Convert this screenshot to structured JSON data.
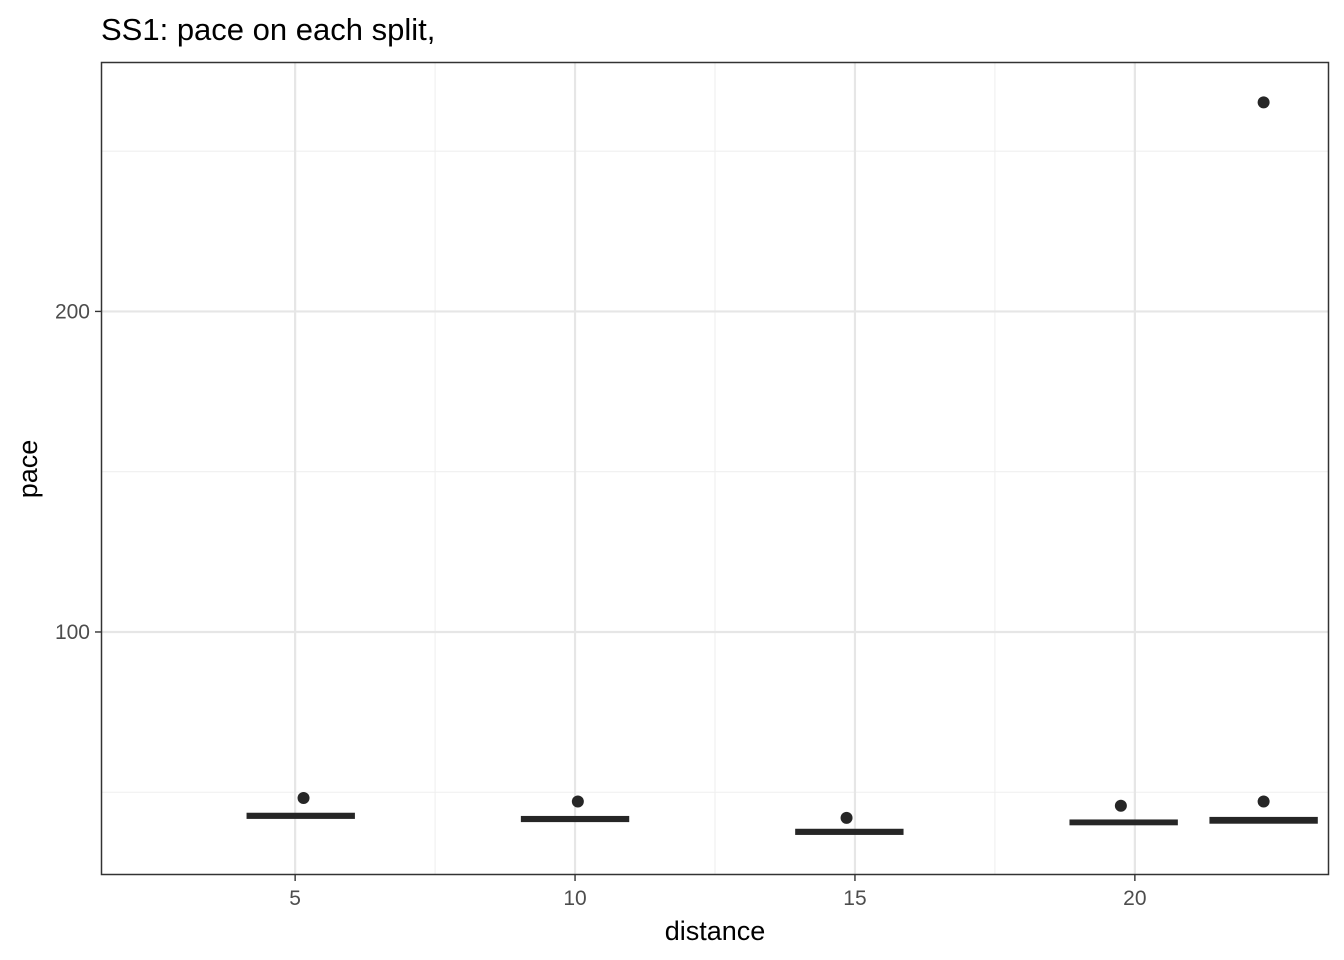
{
  "chart_data": {
    "type": "boxplot",
    "title": "SS1: pace on each split,",
    "xlabel": "distance",
    "ylabel": "pace",
    "xlim": [
      1.55,
      23.45
    ],
    "ylim": [
      24.5,
      277.5
    ],
    "x_ticks": [
      5,
      10,
      15,
      20
    ],
    "x_minor_ticks": [
      7.5,
      12.5,
      17.5
    ],
    "y_ticks": [
      100,
      200
    ],
    "y_minor_ticks": [
      50,
      150,
      250
    ],
    "grid": true,
    "colors": {
      "box": "#262626",
      "point": "#262626",
      "panel_border": "#333333",
      "grid": "#e6e6e6"
    },
    "boxes": [
      {
        "x": 5.1,
        "width": 1.9,
        "median": 42.7,
        "q1": 42.0,
        "q3": 43.3,
        "outliers": [
          {
            "x": 5.15,
            "y": 48.2
          }
        ]
      },
      {
        "x": 10.0,
        "width": 1.9,
        "median": 41.7,
        "q1": 41.0,
        "q3": 42.3,
        "outliers": [
          {
            "x": 10.05,
            "y": 47.1
          }
        ]
      },
      {
        "x": 14.9,
        "width": 1.9,
        "median": 37.6,
        "q1": 37.0,
        "q3": 38.3,
        "outliers": [
          {
            "x": 14.85,
            "y": 42.0
          }
        ]
      },
      {
        "x": 19.8,
        "width": 1.9,
        "median": 40.6,
        "q1": 40.0,
        "q3": 41.2,
        "outliers": [
          {
            "x": 19.75,
            "y": 45.8
          }
        ]
      },
      {
        "x": 22.3,
        "width": 1.9,
        "median": 41.2,
        "q1": 40.5,
        "q3": 42.0,
        "outliers": [
          {
            "x": 22.3,
            "y": 47.1
          },
          {
            "x": 22.3,
            "y": 265.2
          }
        ]
      }
    ]
  }
}
